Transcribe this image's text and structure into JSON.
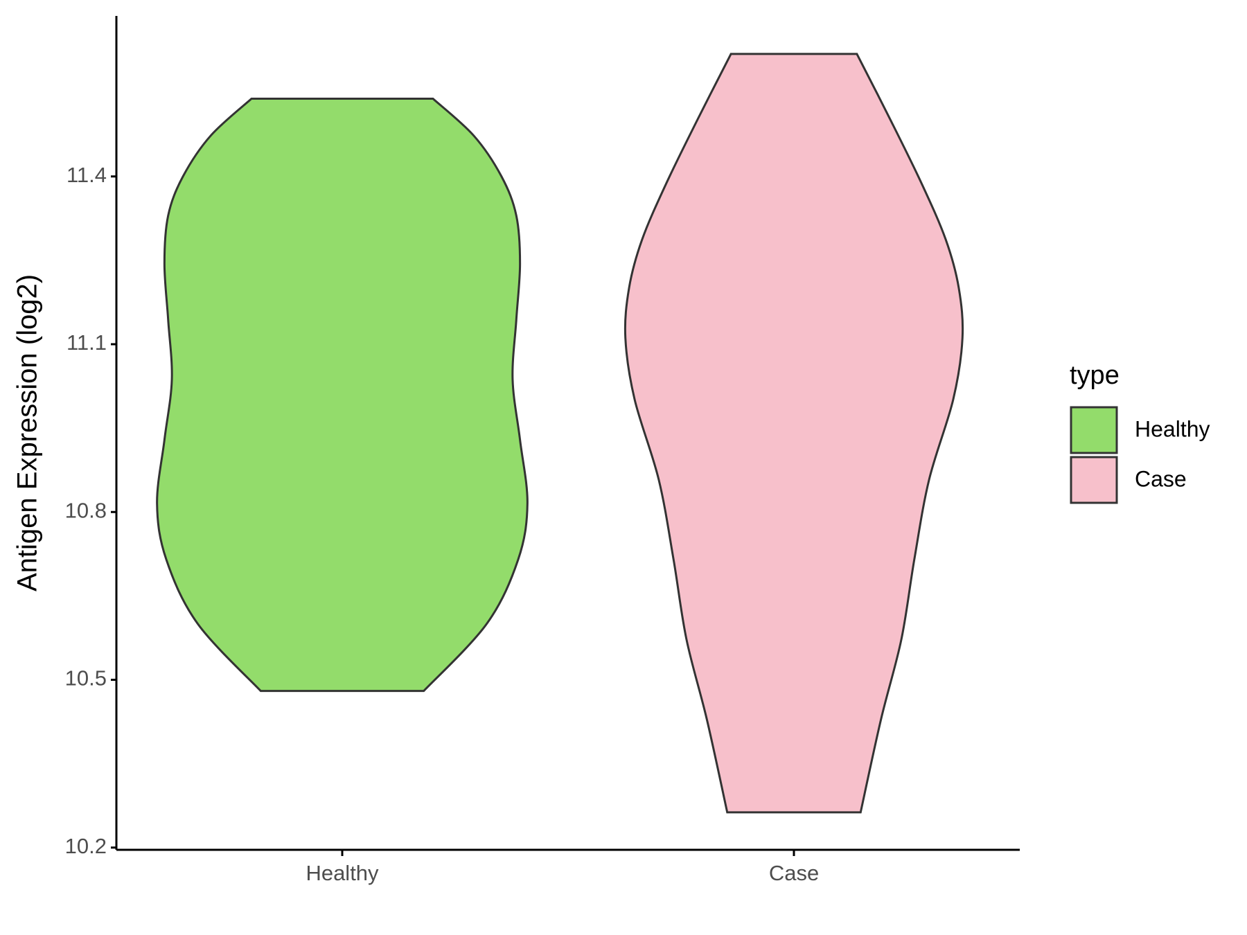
{
  "chart_data": {
    "type": "violin",
    "ylabel": "Antigen Expression (log2)",
    "categories": [
      "Healthy",
      "Case"
    ],
    "series": [
      {
        "name": "Healthy",
        "color": "#93dc6b",
        "y": [
          11.539,
          11.473,
          11.4,
          11.33,
          11.244,
          11.144,
          11.037,
          10.929,
          10.815,
          10.715,
          10.6,
          10.48
        ],
        "width": [
          0.49,
          0.71,
          0.86,
          0.94,
          0.96,
          0.94,
          0.92,
          0.96,
          1.0,
          0.95,
          0.78,
          0.44
        ]
      },
      {
        "name": "Case",
        "color": "#f7c0cb",
        "y": [
          11.619,
          11.502,
          11.387,
          11.287,
          11.201,
          11.111,
          11.001,
          10.858,
          10.715,
          10.572,
          10.429,
          10.263
        ],
        "width": [
          0.34,
          0.52,
          0.69,
          0.82,
          0.89,
          0.91,
          0.86,
          0.73,
          0.65,
          0.58,
          0.47,
          0.36
        ]
      }
    ],
    "ylim": [
      10.196,
      11.687
    ],
    "yticks": [
      10.2,
      10.5,
      10.8,
      11.1,
      11.4
    ],
    "grid": false,
    "legend": {
      "title": "type",
      "position": "right"
    }
  }
}
